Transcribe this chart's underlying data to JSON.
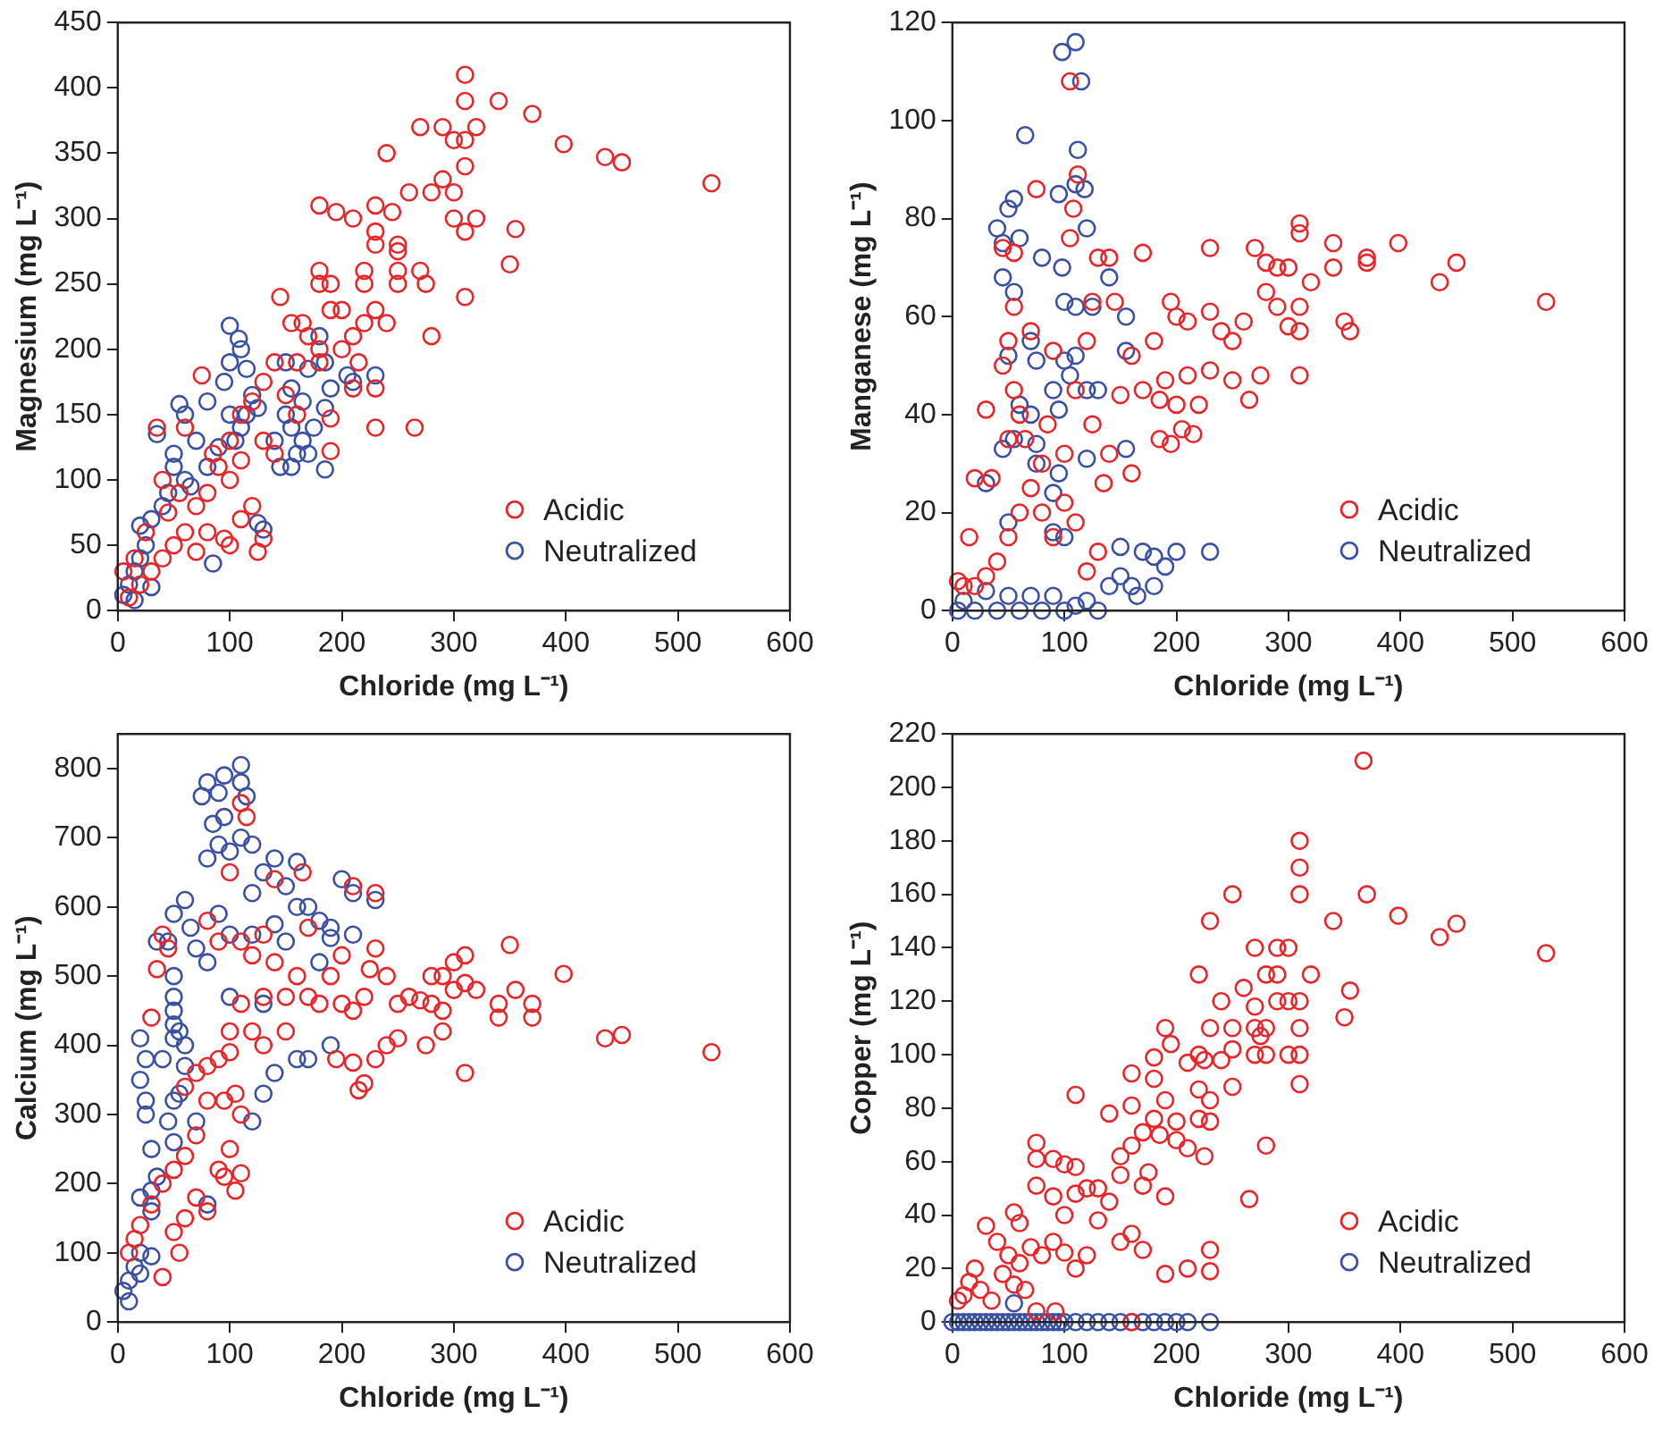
{
  "chart_data": [
    {
      "type": "scatter",
      "xlabel": "Chloride (mg L⁻¹)",
      "ylabel": "Magnesium (mg L⁻¹)",
      "xlim": [
        0,
        600
      ],
      "xticks": [
        0,
        100,
        200,
        300,
        400,
        500,
        600
      ],
      "ylim": [
        0,
        450
      ],
      "yticks": [
        0,
        50,
        100,
        150,
        200,
        250,
        300,
        350,
        400,
        450
      ],
      "grid": false,
      "legend": "bottom right",
      "marker": "circle",
      "series": [
        {
          "name": "Acidic",
          "color": "#e8262a",
          "x": [
            310,
            310,
            340,
            370,
            398,
            435,
            450,
            530,
            270,
            290,
            320,
            300,
            310,
            240,
            310,
            290,
            260,
            280,
            300,
            180,
            195,
            210,
            230,
            245,
            300,
            320,
            310,
            355,
            230,
            230,
            250,
            250,
            350,
            270,
            275,
            180,
            180,
            190,
            220,
            220,
            250,
            250,
            145,
            310,
            280,
            190,
            200,
            230,
            240,
            155,
            165,
            170,
            180,
            200,
            210,
            220,
            160,
            180,
            215,
            230,
            210,
            190,
            190,
            230,
            265,
            140,
            130,
            120,
            110,
            100,
            90,
            80,
            70,
            60,
            50,
            40,
            30,
            20,
            10,
            75,
            35,
            40,
            100,
            120,
            95,
            100,
            125,
            130,
            70,
            60,
            150,
            160,
            130,
            110,
            85,
            55,
            45,
            25,
            15,
            5,
            80,
            110,
            140
          ],
          "values": [
            410,
            390,
            390,
            380,
            357,
            347,
            343,
            327,
            370,
            370,
            370,
            360,
            360,
            350,
            340,
            330,
            320,
            320,
            320,
            310,
            305,
            300,
            310,
            305,
            300,
            300,
            290,
            292,
            290,
            280,
            280,
            275,
            265,
            260,
            250,
            260,
            250,
            250,
            260,
            250,
            260,
            250,
            240,
            240,
            210,
            230,
            230,
            230,
            220,
            220,
            220,
            210,
            200,
            200,
            210,
            220,
            190,
            190,
            190,
            170,
            170,
            147,
            122,
            140,
            140,
            190,
            175,
            160,
            150,
            130,
            110,
            90,
            80,
            60,
            50,
            40,
            30,
            20,
            10,
            180,
            140,
            100,
            100,
            80,
            55,
            50,
            45,
            55,
            45,
            140,
            165,
            150,
            130,
            115,
            120,
            90,
            75,
            60,
            40,
            30,
            60,
            70,
            120
          ]
        },
        {
          "name": "Neutralized",
          "color": "#3a51a3",
          "x": [
            100,
            108,
            110,
            100,
            115,
            180,
            150,
            170,
            185,
            205,
            230,
            210,
            190,
            155,
            165,
            120,
            95,
            80,
            55,
            60,
            100,
            115,
            125,
            110,
            140,
            150,
            155,
            165,
            175,
            185,
            160,
            145,
            155,
            170,
            185,
            35,
            50,
            70,
            90,
            50,
            60,
            80,
            45,
            30,
            20,
            25,
            20,
            15,
            10,
            5,
            15,
            30,
            85,
            125,
            130,
            40,
            65,
            105
          ],
          "values": [
            218,
            208,
            200,
            190,
            185,
            210,
            190,
            185,
            190,
            180,
            180,
            175,
            170,
            170,
            160,
            165,
            175,
            160,
            158,
            150,
            150,
            150,
            155,
            140,
            130,
            150,
            140,
            130,
            140,
            155,
            120,
            110,
            110,
            120,
            108,
            135,
            120,
            130,
            125,
            110,
            100,
            110,
            90,
            70,
            65,
            50,
            40,
            30,
            20,
            12,
            8,
            18,
            36,
            67,
            62,
            80,
            95,
            130
          ]
        }
      ]
    },
    {
      "type": "scatter",
      "xlabel": "Chloride (mg L⁻¹)",
      "ylabel": "Manganese (mg L⁻¹)",
      "xlim": [
        0,
        600
      ],
      "xticks": [
        0,
        100,
        200,
        300,
        400,
        500,
        600
      ],
      "ylim": [
        0,
        120
      ],
      "yticks": [
        0,
        20,
        40,
        60,
        80,
        100,
        120
      ],
      "grid": false,
      "legend": "bottom right",
      "marker": "circle",
      "series": [
        {
          "name": "Acidic",
          "color": "#e8262a",
          "x": [
            105,
            112,
            108,
            105,
            75,
            45,
            55,
            130,
            140,
            170,
            230,
            270,
            280,
            290,
            300,
            310,
            310,
            340,
            340,
            370,
            370,
            398,
            435,
            450,
            530,
            320,
            310,
            290,
            280,
            300,
            310,
            350,
            355,
            310,
            260,
            250,
            240,
            230,
            195,
            200,
            210,
            180,
            160,
            150,
            170,
            185,
            190,
            200,
            210,
            220,
            230,
            250,
            265,
            275,
            185,
            195,
            205,
            215,
            160,
            140,
            135,
            125,
            110,
            120,
            125,
            90,
            85,
            70,
            55,
            50,
            45,
            55,
            60,
            50,
            30,
            65,
            100,
            80,
            70,
            60,
            50,
            40,
            30,
            20,
            10,
            5,
            15,
            20,
            35,
            80,
            90,
            100,
            110,
            120,
            130,
            145
          ],
          "values": [
            108,
            89,
            82,
            76,
            86,
            74,
            73,
            72,
            72,
            73,
            74,
            74,
            71,
            70,
            70,
            79,
            77,
            75,
            70,
            72,
            71,
            75,
            67,
            71,
            63,
            67,
            62,
            62,
            65,
            58,
            57,
            59,
            57,
            48,
            59,
            55,
            57,
            61,
            63,
            60,
            59,
            55,
            52,
            44,
            45,
            43,
            47,
            42,
            48,
            42,
            49,
            47,
            43,
            48,
            35,
            34,
            37,
            36,
            28,
            32,
            26,
            38,
            45,
            55,
            63,
            53,
            38,
            57,
            62,
            55,
            50,
            45,
            40,
            35,
            41,
            35,
            32,
            30,
            25,
            20,
            15,
            10,
            7,
            5,
            5,
            6,
            15,
            27,
            27,
            20,
            15,
            22,
            18,
            8,
            12,
            63
          ]
        },
        {
          "name": "Neutralized",
          "color": "#3a51a3",
          "x": [
            98,
            110,
            115,
            65,
            112,
            95,
            110,
            118,
            50,
            55,
            40,
            45,
            60,
            120,
            80,
            98,
            140,
            45,
            55,
            100,
            110,
            125,
            70,
            155,
            155,
            50,
            75,
            100,
            110,
            105,
            90,
            120,
            130,
            70,
            95,
            60,
            45,
            55,
            75,
            120,
            155,
            75,
            95,
            30,
            90,
            50,
            90,
            100,
            150,
            170,
            180,
            200,
            230,
            190,
            180,
            160,
            140,
            120,
            100,
            80,
            60,
            40,
            20,
            5,
            10,
            30,
            50,
            70,
            90,
            110,
            130,
            150,
            165
          ],
          "values": [
            114,
            116,
            108,
            97,
            94,
            85,
            87,
            86,
            82,
            84,
            78,
            75,
            76,
            78,
            72,
            70,
            68,
            68,
            65,
            63,
            62,
            62,
            55,
            60,
            53,
            52,
            51,
            51,
            52,
            48,
            45,
            45,
            45,
            40,
            41,
            42,
            33,
            35,
            34,
            31,
            33,
            30,
            28,
            26,
            24,
            18,
            16,
            15,
            13,
            12,
            11,
            12,
            12,
            9,
            5,
            5,
            5,
            2,
            0,
            0,
            0,
            0,
            0,
            0,
            2,
            4,
            3,
            3,
            3,
            1,
            0,
            7,
            3
          ]
        }
      ]
    },
    {
      "type": "scatter",
      "xlabel": "Chloride (mg L⁻¹)",
      "ylabel": "Calcium (mg L⁻¹)",
      "xlim": [
        0,
        600
      ],
      "xticks": [
        0,
        100,
        200,
        300,
        400,
        500,
        600
      ],
      "ylim": [
        0,
        850
      ],
      "yticks": [
        0,
        100,
        200,
        300,
        400,
        500,
        600,
        700,
        800
      ],
      "grid": false,
      "legend": "bottom right",
      "marker": "circle",
      "series": [
        {
          "name": "Acidic",
          "color": "#e8262a",
          "x": [
            110,
            115,
            100,
            165,
            210,
            230,
            140,
            170,
            130,
            110,
            40,
            45,
            35,
            30,
            80,
            90,
            120,
            140,
            160,
            200,
            230,
            225,
            240,
            190,
            170,
            150,
            130,
            110,
            180,
            200,
            210,
            220,
            250,
            260,
            270,
            280,
            290,
            300,
            310,
            310,
            320,
            350,
            355,
            340,
            340,
            370,
            370,
            398,
            435,
            450,
            530,
            310,
            300,
            290,
            280,
            275,
            290,
            250,
            240,
            230,
            210,
            195,
            220,
            215,
            150,
            130,
            120,
            100,
            100,
            90,
            80,
            70,
            60,
            95,
            105,
            110,
            80,
            70,
            60,
            50,
            40,
            30,
            20,
            10,
            15,
            50,
            55,
            40,
            90,
            95,
            110,
            105,
            100,
            80,
            70,
            60
          ],
          "values": [
            750,
            730,
            650,
            650,
            630,
            620,
            640,
            570,
            560,
            550,
            560,
            540,
            510,
            440,
            580,
            550,
            530,
            520,
            500,
            530,
            540,
            510,
            500,
            500,
            470,
            470,
            470,
            460,
            460,
            460,
            450,
            470,
            460,
            470,
            465,
            500,
            500,
            520,
            530,
            490,
            480,
            545,
            480,
            460,
            440,
            460,
            440,
            503,
            410,
            415,
            390,
            360,
            480,
            450,
            460,
            400,
            420,
            410,
            400,
            380,
            375,
            380,
            345,
            335,
            420,
            400,
            420,
            420,
            390,
            380,
            370,
            360,
            340,
            320,
            330,
            300,
            320,
            270,
            240,
            220,
            200,
            170,
            140,
            100,
            120,
            130,
            100,
            65,
            220,
            210,
            215,
            190,
            250,
            160,
            180,
            150
          ]
        },
        {
          "name": "Neutralized",
          "color": "#3a51a3",
          "x": [
            110,
            95,
            80,
            75,
            90,
            110,
            115,
            95,
            85,
            90,
            100,
            110,
            120,
            140,
            160,
            80,
            130,
            120,
            150,
            200,
            210,
            230,
            160,
            170,
            180,
            190,
            190,
            210,
            180,
            140,
            150,
            120,
            100,
            90,
            60,
            50,
            65,
            45,
            35,
            70,
            80,
            100,
            50,
            50,
            50,
            50,
            55,
            60,
            50,
            130,
            160,
            170,
            190,
            140,
            130,
            120,
            60,
            55,
            20,
            25,
            20,
            25,
            25,
            50,
            45,
            50,
            30,
            35,
            30,
            20,
            30,
            80,
            20,
            15,
            10,
            5,
            10,
            20,
            30,
            70,
            40
          ],
          "values": [
            805,
            790,
            780,
            760,
            765,
            780,
            760,
            730,
            720,
            690,
            680,
            700,
            690,
            670,
            665,
            670,
            650,
            620,
            630,
            640,
            620,
            610,
            600,
            600,
            580,
            570,
            555,
            560,
            520,
            575,
            550,
            560,
            560,
            590,
            610,
            590,
            570,
            550,
            550,
            540,
            520,
            470,
            500,
            470,
            450,
            430,
            420,
            400,
            410,
            460,
            380,
            380,
            400,
            360,
            330,
            290,
            370,
            330,
            410,
            380,
            350,
            320,
            300,
            320,
            290,
            260,
            250,
            210,
            190,
            180,
            160,
            170,
            100,
            80,
            60,
            45,
            30,
            70,
            95,
            290,
            380
          ]
        }
      ]
    },
    {
      "type": "scatter",
      "xlabel": "Chloride (mg L⁻¹)",
      "ylabel": "Copper (mg L⁻¹)",
      "xlim": [
        0,
        600
      ],
      "xticks": [
        0,
        100,
        200,
        300,
        400,
        500,
        600
      ],
      "ylim": [
        0,
        220
      ],
      "yticks": [
        0,
        20,
        40,
        60,
        80,
        100,
        120,
        140,
        160,
        180,
        200,
        220
      ],
      "grid": false,
      "legend": "bottom right",
      "marker": "circle",
      "series": [
        {
          "name": "Acidic",
          "color": "#e8262a",
          "x": [
            367,
            310,
            310,
            310,
            370,
            250,
            230,
            340,
            398,
            435,
            450,
            530,
            270,
            290,
            300,
            280,
            290,
            320,
            220,
            290,
            300,
            310,
            240,
            260,
            355,
            350,
            270,
            275,
            270,
            280,
            250,
            230,
            310,
            190,
            195,
            250,
            220,
            270,
            280,
            300,
            310,
            225,
            240,
            210,
            180,
            310,
            250,
            160,
            220,
            230,
            110,
            180,
            190,
            140,
            160,
            180,
            200,
            220,
            230,
            185,
            200,
            210,
            225,
            280,
            265,
            170,
            150,
            160,
            175,
            190,
            75,
            75,
            90,
            100,
            110,
            75,
            90,
            110,
            120,
            130,
            150,
            170,
            55,
            60,
            140,
            100,
            130,
            30,
            40,
            50,
            60,
            70,
            80,
            90,
            100,
            110,
            120,
            150,
            160,
            170,
            190,
            210,
            230,
            230,
            20,
            10,
            15,
            25,
            35,
            45,
            55,
            65,
            75,
            92,
            5,
            160
          ],
          "values": [
            210,
            180,
            170,
            160,
            160,
            160,
            150,
            150,
            152,
            144,
            149,
            138,
            140,
            140,
            140,
            130,
            130,
            130,
            130,
            120,
            120,
            120,
            120,
            125,
            124,
            114,
            118,
            107,
            110,
            110,
            110,
            110,
            110,
            110,
            104,
            102,
            100,
            100,
            100,
            100,
            100,
            98,
            98,
            97,
            99,
            89,
            88,
            93,
            87,
            83,
            85,
            91,
            83,
            78,
            81,
            76,
            75,
            76,
            75,
            70,
            68,
            65,
            62,
            66,
            46,
            71,
            62,
            66,
            56,
            47,
            67,
            61,
            61,
            59,
            58,
            51,
            47,
            48,
            50,
            50,
            55,
            51,
            41,
            37,
            45,
            40,
            38,
            36,
            30,
            25,
            22,
            28,
            25,
            30,
            26,
            20,
            25,
            30,
            33,
            27,
            18,
            20,
            27,
            19,
            20,
            10,
            15,
            12,
            8,
            18,
            14,
            12,
            4,
            4,
            8,
            0
          ]
        },
        {
          "name": "Neutralized",
          "color": "#3a51a3",
          "x": [
            0,
            5,
            10,
            15,
            20,
            25,
            30,
            35,
            40,
            45,
            50,
            55,
            60,
            65,
            70,
            75,
            80,
            85,
            90,
            95,
            100,
            110,
            120,
            130,
            140,
            150,
            160,
            170,
            180,
            190,
            200,
            210,
            230,
            55
          ],
          "values": [
            0,
            0,
            0,
            0,
            0,
            0,
            0,
            0,
            0,
            0,
            0,
            0,
            0,
            0,
            0,
            0,
            0,
            0,
            0,
            0,
            0,
            0,
            0,
            0,
            0,
            0,
            0,
            0,
            0,
            0,
            0,
            0,
            0,
            7
          ]
        }
      ]
    }
  ]
}
